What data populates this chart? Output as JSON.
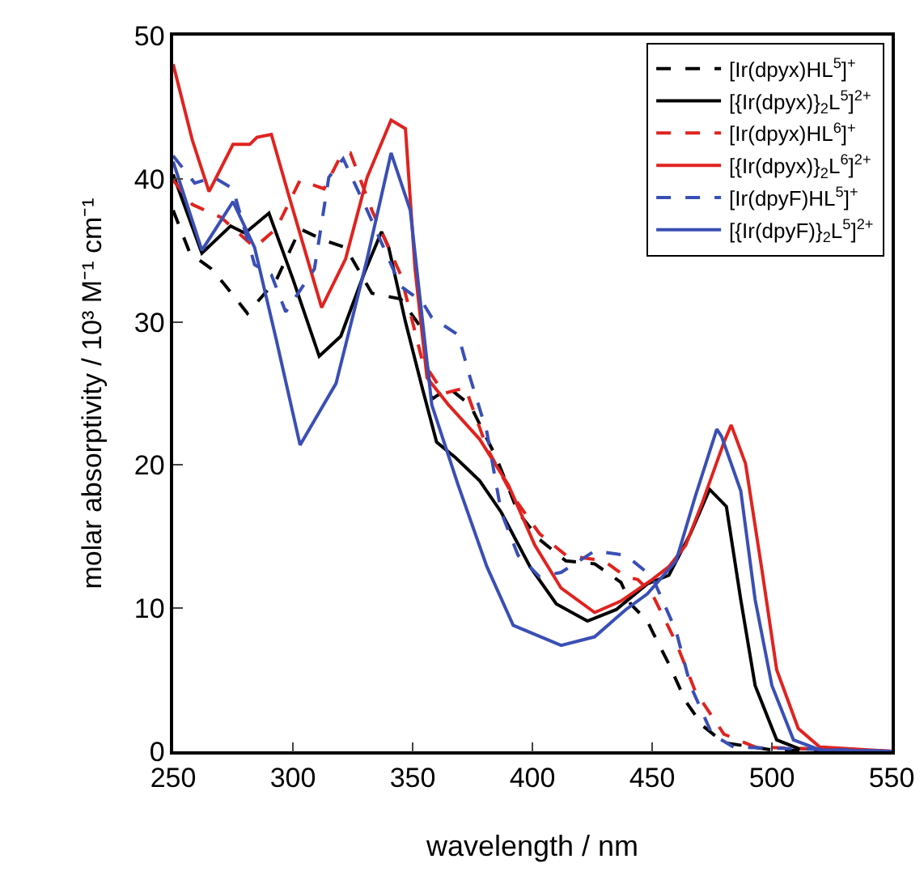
{
  "chart_data": {
    "type": "line",
    "xlabel": "wavelength / nm",
    "ylabel": "molar absorptivity / 10³ M⁻¹ cm⁻¹",
    "xlim": [
      250,
      550
    ],
    "xticks": [
      250,
      300,
      350,
      400,
      450,
      500,
      550
    ],
    "ylim": [
      0,
      50
    ],
    "yticks": [
      0,
      10,
      20,
      30,
      40,
      50
    ],
    "grid": false,
    "legend": "top right",
    "marker": "none",
    "series": [
      {
        "name": "[Ir(dpyx)HL$^{5}$]$^{+}$",
        "color": "#000000",
        "line_style": "dashed",
        "x": [
          250,
          257,
          266,
          272,
          281,
          293,
          303,
          313,
          322,
          333,
          345,
          354,
          358,
          365,
          374,
          385,
          394,
          403,
          414,
          426,
          437,
          441,
          448,
          450,
          457,
          464,
          471,
          480,
          500,
          550
        ],
        "values": [
          37.8,
          34.8,
          33.7,
          32.5,
          30.6,
          32.9,
          36.5,
          35.7,
          35.2,
          32,
          31.6,
          29.5,
          24.6,
          25.4,
          24.2,
          20.5,
          16.7,
          14.8,
          13.3,
          13.1,
          11.8,
          10.3,
          9.1,
          8.4,
          6.1,
          3.5,
          1.8,
          0.6,
          0.1,
          0
        ]
      },
      {
        "name": "[{Ir(dpyx)}$_{2}$L$^{5}$]$^{2+}$",
        "color": "#000000",
        "line_style": "solid",
        "x": [
          250,
          262,
          274,
          280,
          290,
          300,
          311,
          320,
          330,
          337,
          340,
          347,
          354,
          360,
          368,
          378,
          387,
          399,
          410,
          423,
          435,
          448,
          457,
          466,
          474,
          481,
          487,
          493,
          502,
          511,
          550
        ],
        "values": [
          40.3,
          34.8,
          36.7,
          36.2,
          37.6,
          33,
          27.6,
          29,
          33.5,
          36.3,
          35.2,
          30,
          25.4,
          21.6,
          20.5,
          18.9,
          16.7,
          12.9,
          10.3,
          9.1,
          9.9,
          11.7,
          12.3,
          15.2,
          18.3,
          17.1,
          10.6,
          4.6,
          0.8,
          0.2,
          0
        ]
      },
      {
        "name": "[Ir(dpyx)HL$^{6}$]$^{+}$",
        "color": "#e0231f",
        "line_style": "dashed",
        "x": [
          250,
          258,
          270,
          284,
          293,
          303,
          313,
          320,
          324,
          333,
          345,
          354,
          363,
          372,
          381,
          392,
          403,
          414,
          430,
          439,
          444,
          450,
          460,
          468,
          480,
          493,
          550
        ],
        "values": [
          39.9,
          38.2,
          37.3,
          35.2,
          36.5,
          39.9,
          39.3,
          41.6,
          41.8,
          37.8,
          33.3,
          27.3,
          25,
          25.4,
          21.2,
          17.8,
          15.2,
          13.7,
          13.3,
          12.2,
          12,
          11,
          7.6,
          4.2,
          1.2,
          0.3,
          0
        ]
      },
      {
        "name": "[{Ir(dpyx)}$_{2}$L$^{6}$]$^{2+}$",
        "color": "#e0231f",
        "line_style": "solid",
        "x": [
          250,
          258,
          265,
          275,
          282,
          285,
          291,
          298,
          312,
          322,
          331,
          341,
          347,
          351,
          356,
          365,
          378,
          390,
          401,
          412,
          426,
          437,
          450,
          457,
          464,
          471,
          480,
          483,
          489,
          496,
          502,
          511,
          520,
          550
        ],
        "values": [
          48,
          42.7,
          39.1,
          42.4,
          42.4,
          42.9,
          43.1,
          39,
          31,
          34.4,
          40.1,
          44.1,
          43.5,
          33.7,
          26.1,
          24.2,
          21.8,
          18.6,
          14.4,
          11.4,
          9.7,
          10.5,
          12,
          12.9,
          14.4,
          17.4,
          21.6,
          22.8,
          20.1,
          12.5,
          5.7,
          1.6,
          0.3,
          0
        ]
      },
      {
        "name": "[Ir(dpyF)HL$^{5}$]$^{+}$",
        "color": "#3a4fb5",
        "line_style": "dashed",
        "x": [
          250,
          259,
          267,
          275,
          284,
          291,
          297,
          309,
          315,
          321,
          331,
          345,
          354,
          358,
          369,
          374,
          381,
          387,
          394,
          403,
          412,
          426,
          439,
          450,
          460,
          466,
          475,
          484,
          550
        ],
        "values": [
          41.6,
          39.7,
          40.1,
          39.3,
          34,
          33.3,
          30.7,
          33.7,
          40.1,
          41.4,
          37.8,
          32.5,
          31.4,
          30.3,
          29.1,
          26.1,
          22.3,
          16.7,
          13.7,
          12.2,
          12.5,
          14,
          13.7,
          12.2,
          8.4,
          4.6,
          1.2,
          0.3,
          0
        ]
      },
      {
        "name": "[{Ir(dpyF)}$_{2}$L$^{5}$]$^{2+}$",
        "color": "#3a4fb5",
        "line_style": "solid",
        "x": [
          250,
          262,
          275,
          284,
          293,
          303,
          318,
          331,
          341,
          349,
          358,
          369,
          381,
          392,
          412,
          426,
          439,
          448,
          460,
          468,
          477,
          479,
          487,
          493,
          500,
          509,
          520,
          550
        ],
        "values": [
          41.2,
          35,
          38.4,
          35.2,
          28.8,
          21.4,
          25.7,
          34.4,
          41.8,
          37.8,
          24.2,
          18.6,
          12.9,
          8.8,
          7.4,
          8,
          9.9,
          11,
          13.3,
          17.8,
          22.5,
          22,
          18.2,
          10.6,
          4.6,
          0.8,
          0.1,
          0
        ]
      }
    ]
  }
}
